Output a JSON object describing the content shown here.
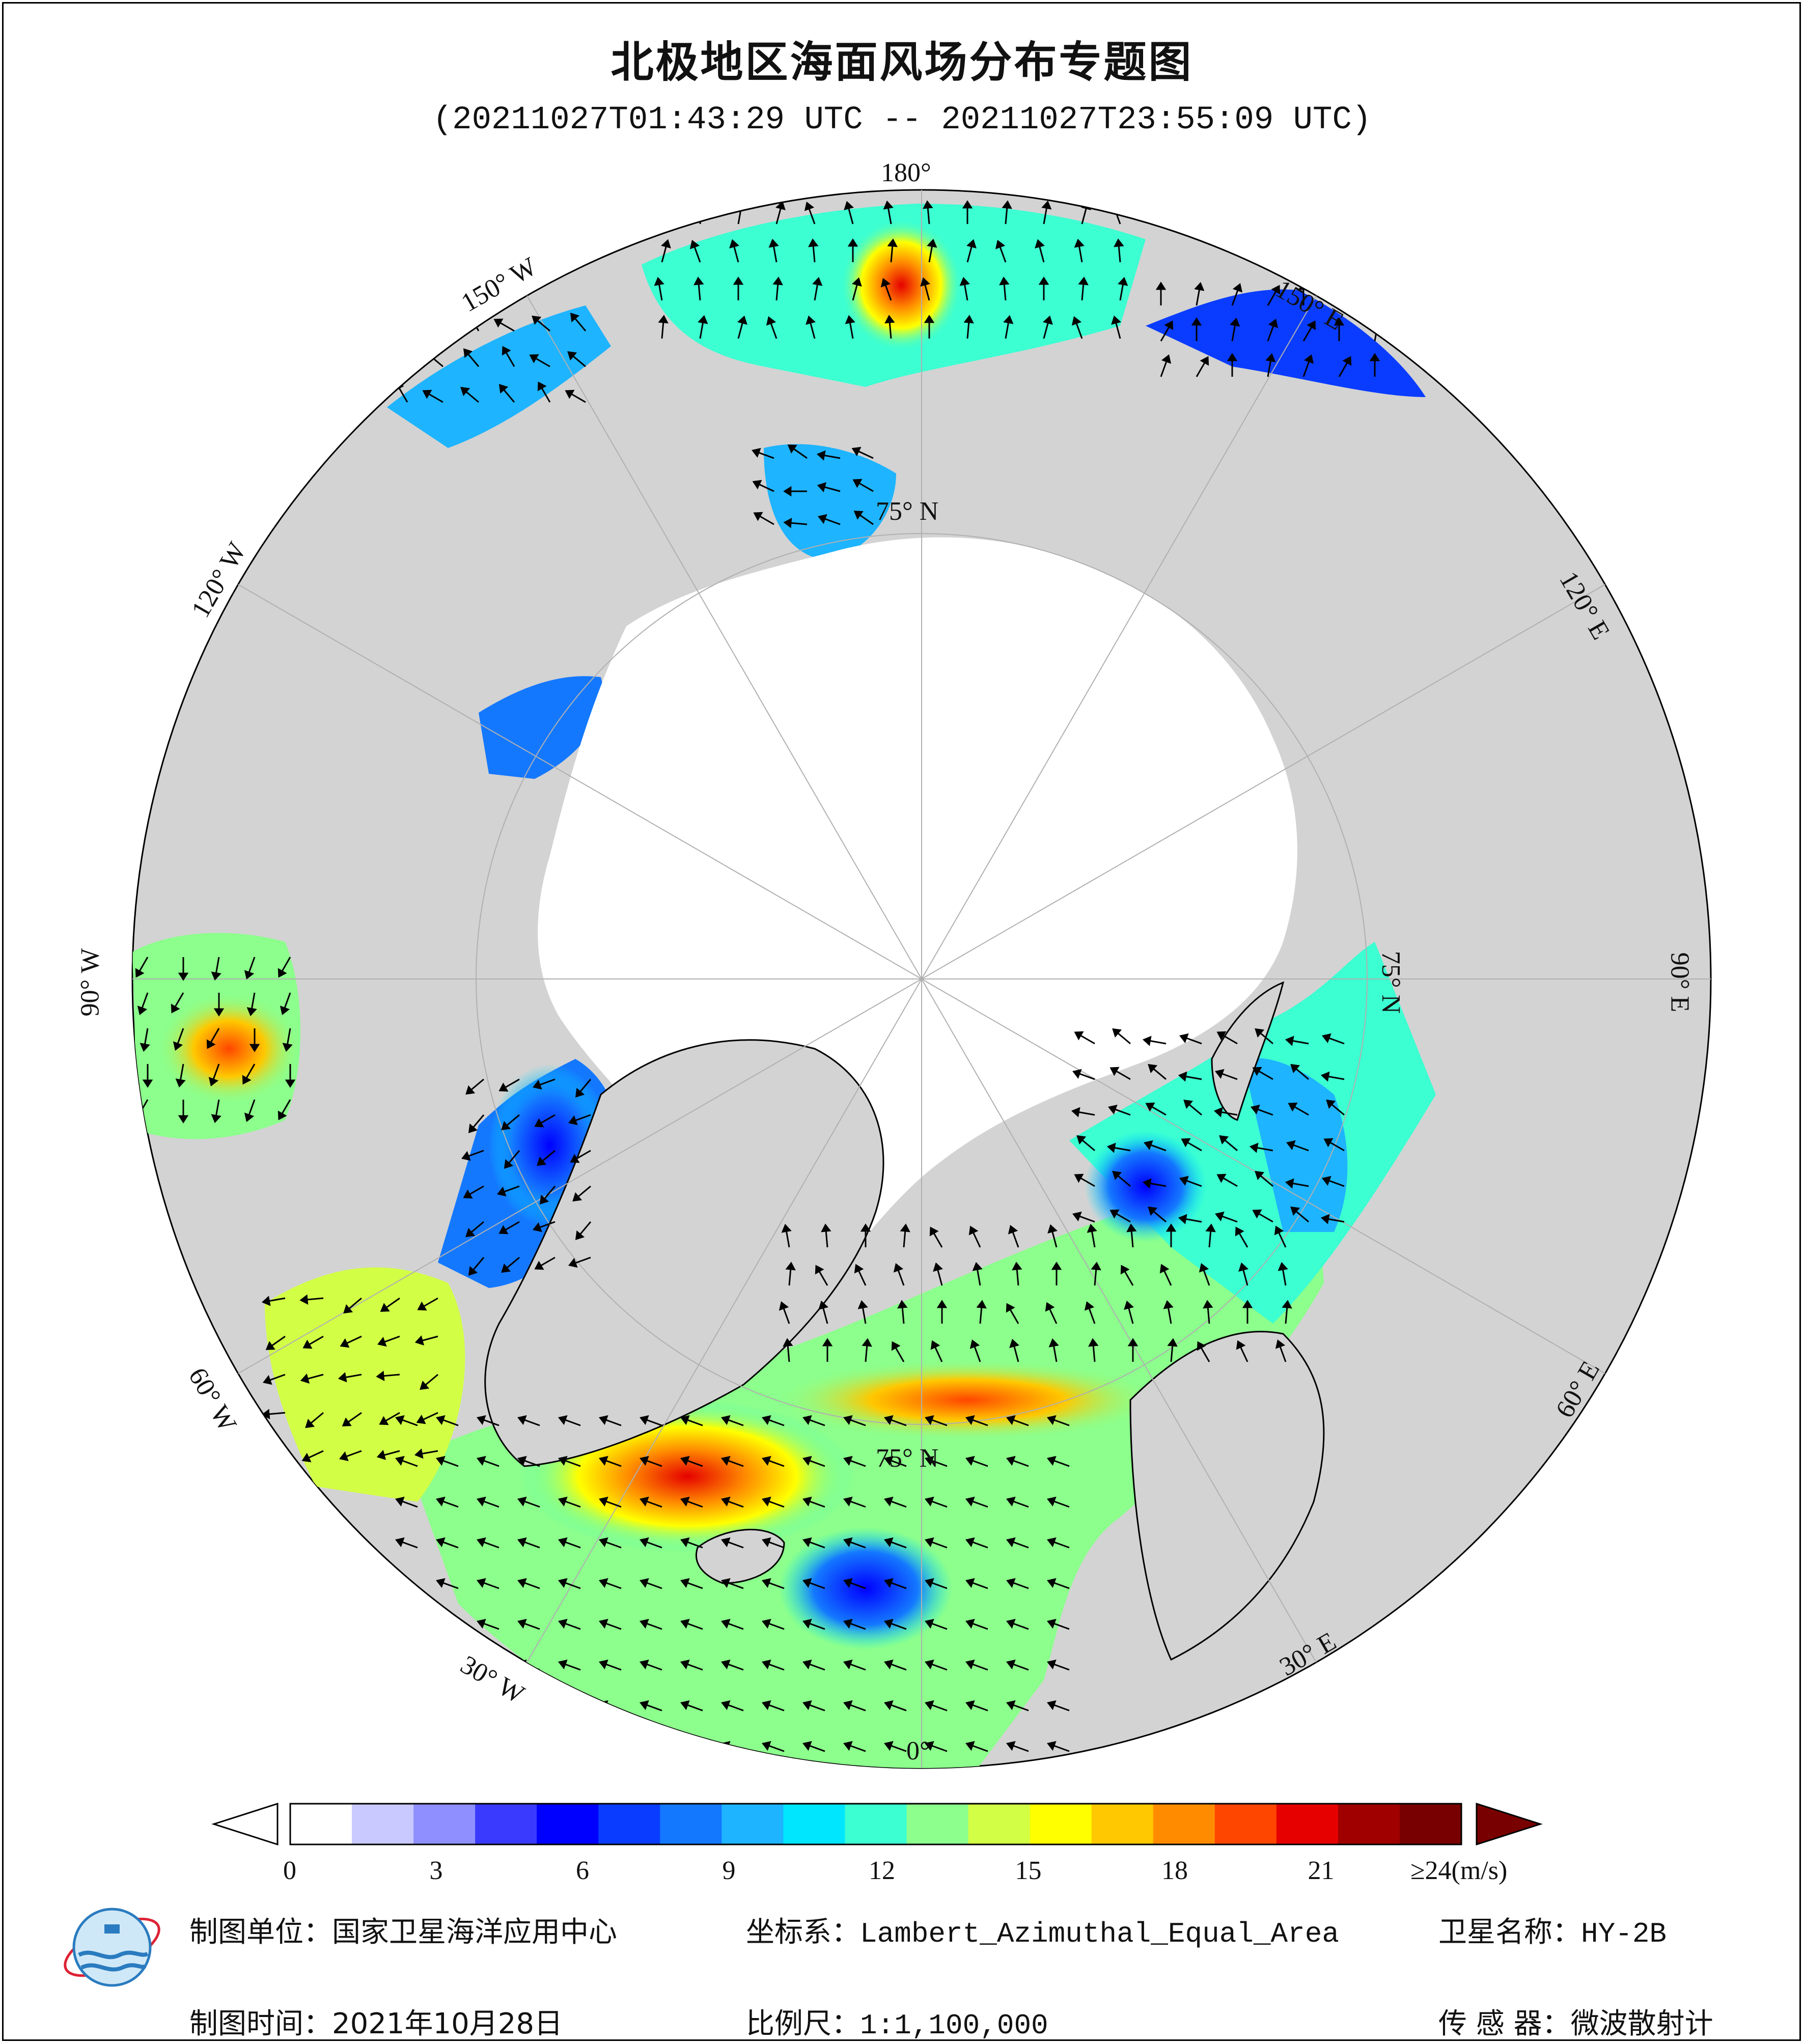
{
  "title": "北极地区海面风场分布专题图",
  "subtitle": "(20211027T01:43:29 UTC -- 20211027T23:55:09 UTC)",
  "map": {
    "longitude_labels": {
      "lon_180": "180°",
      "lon_150W": "150° W",
      "lon_120W": "120° W",
      "lon_90W": "90° W",
      "lon_60W": "60° W",
      "lon_30W": "30° W",
      "lon_0": "0°",
      "lon_30E": "30° E",
      "lon_60E": "60° E",
      "lon_90E": "90° E",
      "lon_120E": "120° E",
      "lon_150E": "150° E"
    },
    "latitude_labels": {
      "lat_top": "75° N",
      "lat_right": "75° N",
      "lat_bottom": "75° N"
    },
    "colors": {
      "land": "#d3d3d3",
      "sea_ice": "#ffffff",
      "arrow": "#000000"
    }
  },
  "colorbar": {
    "ticks": [
      "0",
      "3",
      "6",
      "9",
      "12",
      "15",
      "18",
      "21",
      "≥24(m/s)"
    ],
    "range": [
      0,
      24
    ],
    "unit": "m/s",
    "colors": [
      "#ffffff",
      "#c9c9ff",
      "#8f8fff",
      "#3a3aff",
      "#0000ff",
      "#0a3cff",
      "#1478ff",
      "#1eb4ff",
      "#00e6ff",
      "#3cffd2",
      "#8cff8c",
      "#d2ff46",
      "#ffff00",
      "#ffc800",
      "#ff8c00",
      "#ff4600",
      "#e60000",
      "#a00000",
      "#780000"
    ]
  },
  "footer": {
    "unit_label": "制图单位：",
    "unit_value": "国家卫星海洋应用中心",
    "crs_label": "坐标系：",
    "crs_value": "Lambert_Azimuthal_Equal_Area",
    "satellite_label": "卫星名称：",
    "satellite_value": "HY-2B",
    "date_label": "制图时间：",
    "date_value": "2021年10月28日",
    "scale_label": "比例尺：",
    "scale_value": "1:1,100,000",
    "sensor_label": "传 感 器：",
    "sensor_value": "微波散射计"
  },
  "logo": {
    "icon": "nsoas-logo-icon"
  }
}
